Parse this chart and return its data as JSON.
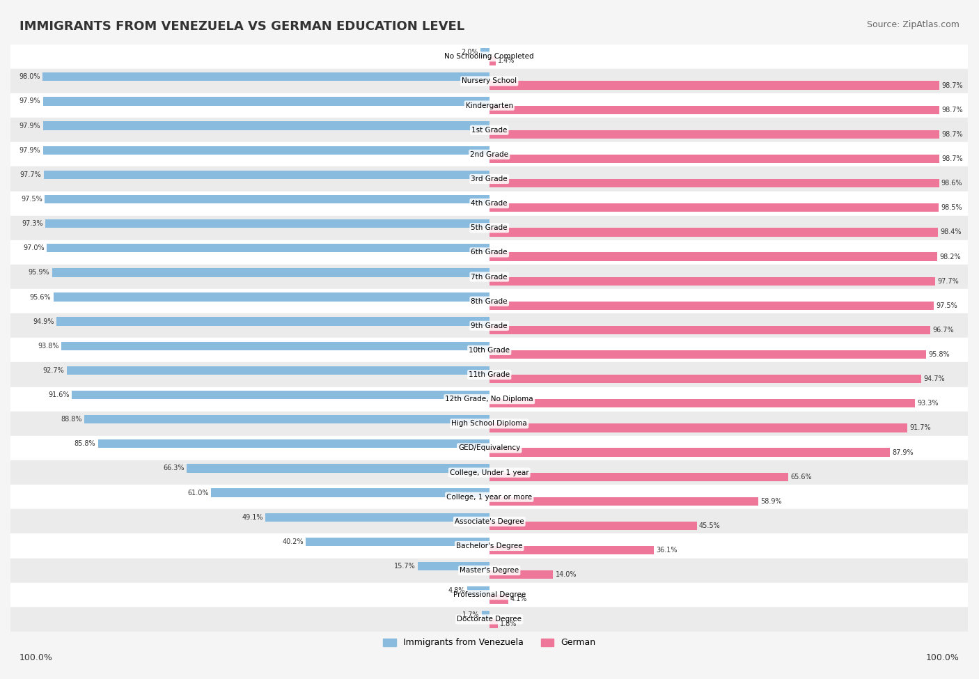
{
  "title": "IMMIGRANTS FROM VENEZUELA VS GERMAN EDUCATION LEVEL",
  "source": "Source: ZipAtlas.com",
  "categories": [
    "No Schooling Completed",
    "Nursery School",
    "Kindergarten",
    "1st Grade",
    "2nd Grade",
    "3rd Grade",
    "4th Grade",
    "5th Grade",
    "6th Grade",
    "7th Grade",
    "8th Grade",
    "9th Grade",
    "10th Grade",
    "11th Grade",
    "12th Grade, No Diploma",
    "High School Diploma",
    "GED/Equivalency",
    "College, Under 1 year",
    "College, 1 year or more",
    "Associate's Degree",
    "Bachelor's Degree",
    "Master's Degree",
    "Professional Degree",
    "Doctorate Degree"
  ],
  "venezuela_values": [
    2.0,
    98.0,
    97.9,
    97.9,
    97.9,
    97.7,
    97.5,
    97.3,
    97.0,
    95.9,
    95.6,
    94.9,
    93.8,
    92.7,
    91.6,
    88.8,
    85.8,
    66.3,
    61.0,
    49.1,
    40.2,
    15.7,
    4.8,
    1.7
  ],
  "german_values": [
    1.4,
    98.7,
    98.7,
    98.7,
    98.7,
    98.6,
    98.5,
    98.4,
    98.2,
    97.7,
    97.5,
    96.7,
    95.8,
    94.7,
    93.3,
    91.7,
    87.9,
    65.6,
    58.9,
    45.5,
    36.1,
    14.0,
    4.1,
    1.8
  ],
  "venezuela_color": "#88BBDD",
  "german_color": "#EE7799",
  "background_color": "#F5F5F5",
  "bar_bg_color": "#FFFFFF",
  "row_alt_color": "#EBEBEB",
  "bar_height": 0.35,
  "xlim": [
    0,
    100
  ],
  "legend_labels": [
    "Immigrants from Venezuela",
    "German"
  ],
  "bottom_labels": [
    "100.0%",
    "100.0%"
  ]
}
